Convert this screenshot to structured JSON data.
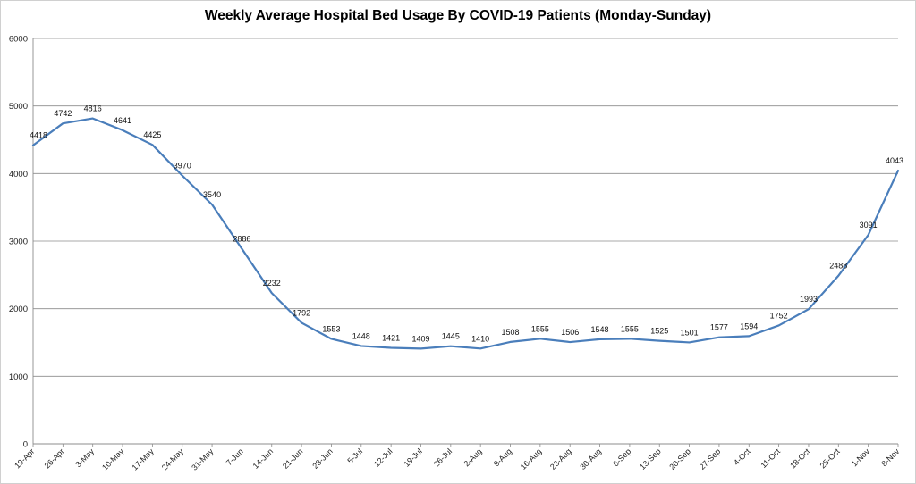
{
  "chart_data": {
    "type": "line",
    "title": "Weekly Average Hospital Bed Usage By COVID-19 Patients (Monday-Sunday)",
    "xlabel": "",
    "ylabel": "",
    "ylim": [
      0,
      6000
    ],
    "yticks": [
      0,
      1000,
      2000,
      3000,
      4000,
      5000,
      6000
    ],
    "grid": true,
    "legend": "none",
    "line_color": "#4A7EBB",
    "categories": [
      "19-Apr",
      "26-Apr",
      "3-May",
      "10-May",
      "17-May",
      "24-May",
      "31-May",
      "7-Jun",
      "14-Jun",
      "21-Jun",
      "28-Jun",
      "5-Jul",
      "12-Jul",
      "19-Jul",
      "26-Jul",
      "2-Aug",
      "9-Aug",
      "16-Aug",
      "23-Aug",
      "30-Aug",
      "6-Sep",
      "13-Sep",
      "20-Sep",
      "27-Sep",
      "4-Oct",
      "11-Oct",
      "18-Oct",
      "25-Oct",
      "1-Nov",
      "8-Nov"
    ],
    "series": [
      {
        "values": [
          4418,
          4742,
          4816,
          4641,
          4425,
          3970,
          3540,
          2886,
          2232,
          1792,
          1553,
          1448,
          1421,
          1409,
          1445,
          1410,
          1508,
          1555,
          1506,
          1548,
          1555,
          1525,
          1501,
          1577,
          1594,
          1752,
          1993,
          2488,
          3091,
          4043
        ]
      }
    ]
  }
}
